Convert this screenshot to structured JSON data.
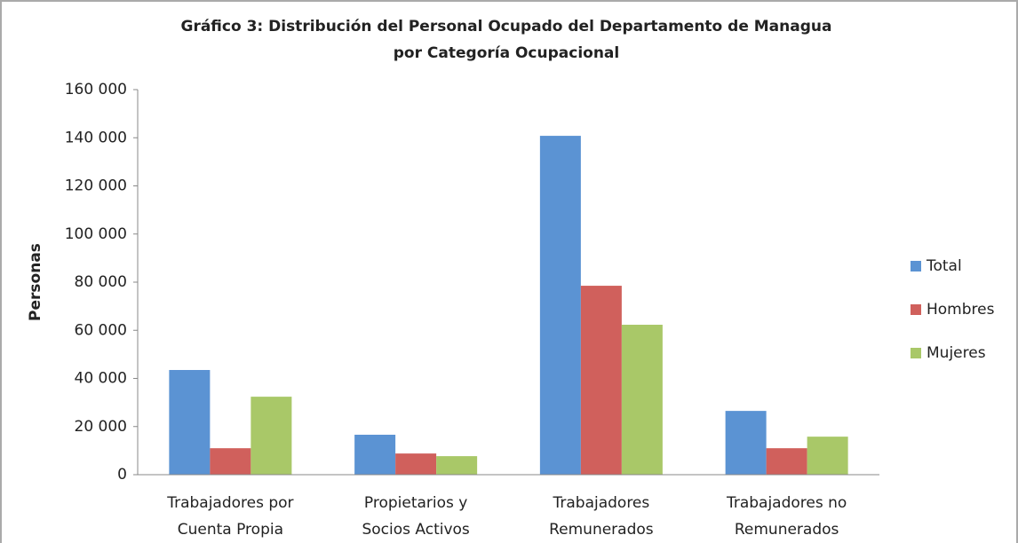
{
  "chart_data": {
    "type": "bar",
    "title": [
      "Gráfico 3: Distribución del Personal Ocupado del Departamento de Managua",
      "por Categoría Ocupacional"
    ],
    "ylabel": "Personas",
    "categories": [
      [
        "Trabajadores por",
        "Cuenta Propia"
      ],
      [
        "Propietarios y",
        "Socios Activos"
      ],
      [
        "Trabajadores",
        "Remunerados"
      ],
      [
        "Trabajadores no",
        "Remunerados"
      ]
    ],
    "series": [
      {
        "name": "Total",
        "color": "#5b93d3",
        "values": [
          43500,
          16600,
          140800,
          26500
        ]
      },
      {
        "name": "Hombres",
        "color": "#d0605c",
        "values": [
          11000,
          8800,
          78500,
          11000
        ]
      },
      {
        "name": "Mujeres",
        "color": "#a9c868",
        "values": [
          32400,
          7700,
          62300,
          15800
        ]
      }
    ],
    "ylim": [
      0,
      160000
    ],
    "yticks": [
      0,
      {
        "value": 20000,
        "label": "20 000"
      },
      {
        "value": 40000,
        "label": "40 000"
      },
      {
        "value": 60000,
        "label": "60 000"
      },
      {
        "value": 80000,
        "label": "80 000"
      },
      {
        "value": 100000,
        "label": "100 000"
      },
      {
        "value": 120000,
        "label": "120 000"
      },
      {
        "value": 140000,
        "label": "140 000"
      },
      {
        "value": 160000,
        "label": "160 000"
      }
    ],
    "grid": false,
    "legend": "right"
  }
}
